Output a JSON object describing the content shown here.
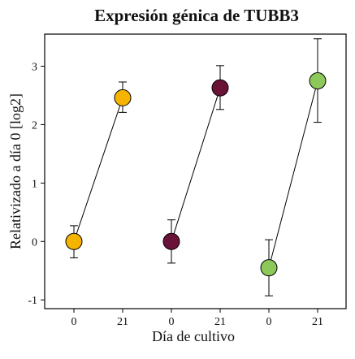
{
  "chart_data": {
    "type": "scatter",
    "title": "Expresión génica de TUBB3",
    "xlabel": "Día de cultivo",
    "ylabel": "Relativizado a día 0 [log2]",
    "categories": [
      "0",
      "21",
      "0",
      "21",
      "0",
      "21"
    ],
    "yticks": [
      -1,
      0,
      1,
      2,
      3
    ],
    "ylim": [
      -1.15,
      3.55
    ],
    "grid": false,
    "legend": "none",
    "series": [
      {
        "color": "#f5b400",
        "points": [
          {
            "x_index": 0,
            "y": 0.0,
            "err_low": -0.28,
            "err_high": 0.27
          },
          {
            "x_index": 1,
            "y": 2.46,
            "err_low": 2.21,
            "err_high": 2.73
          }
        ]
      },
      {
        "color": "#6b1238",
        "points": [
          {
            "x_index": 2,
            "y": 0.0,
            "err_low": -0.37,
            "err_high": 0.37
          },
          {
            "x_index": 3,
            "y": 2.63,
            "err_low": 2.26,
            "err_high": 3.01
          }
        ]
      },
      {
        "color": "#8dc85a",
        "points": [
          {
            "x_index": 4,
            "y": -0.45,
            "err_low": -0.93,
            "err_high": 0.03
          },
          {
            "x_index": 5,
            "y": 2.75,
            "err_low": 2.04,
            "err_high": 3.47
          }
        ]
      }
    ]
  }
}
